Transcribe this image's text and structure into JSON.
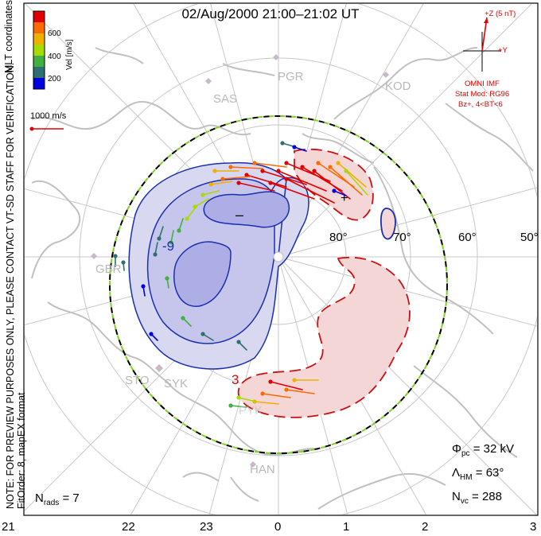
{
  "title": "02/Aug/2000 21:00–21:02 UT",
  "side_note": {
    "line1": "NOTE: FOR PREVIEW PURPOSES ONLY, PLEASE CONTACT VT-SD STAFF FOR VERIFICATION.",
    "line2": "FitOrder: 8,  mapEX format",
    "coords": "MLT coordinates"
  },
  "colorbar": {
    "unit_label": "Vel [m/s]",
    "ticks": [
      "600",
      "400",
      "200"
    ],
    "colors": [
      "#e00000",
      "#ff6a00",
      "#f0b000",
      "#a8dc00",
      "#40b040",
      "#2e7070",
      "#0000e0"
    ]
  },
  "velocity_scale": {
    "label": "1000 m/s"
  },
  "imf": {
    "z_label": "+Z (5 nT)",
    "y_label": "+Y",
    "source": "OMNI IMF",
    "model": "Stat Mod: RG96",
    "condition": "Bz+, 4<BT<6",
    "color": "#e00000"
  },
  "latitude_labels": [
    "80°",
    "70°",
    "60°",
    "50°"
  ],
  "stations": [
    "PGR",
    "KOD",
    "SAS",
    "GBR",
    "STO",
    "SYK",
    "PYK",
    "HAN"
  ],
  "contour_labels": {
    "negative": "-9",
    "positive": "3"
  },
  "stats": {
    "phi_pc": {
      "symbol": "Φ",
      "sub": "pc",
      "value": "= 32 kV"
    },
    "lambda_hm": {
      "symbol": "Λ",
      "sub": "HM",
      "value": "= 63°"
    },
    "n_vc": {
      "symbol": "N",
      "sub": "vc",
      "value": "= 288"
    },
    "n_rads": {
      "symbol": "N",
      "sub": "rads",
      "value": "= 7"
    }
  },
  "mlt_ticks": [
    "21",
    "22",
    "23",
    "0",
    "1",
    "2",
    "3"
  ],
  "map_colors": {
    "negative_fill": "#d8d8f0",
    "negative_fill_inner": "#aeaee6",
    "negative_line": "#1a2fae",
    "positive_fill": "#f4d6d6",
    "positive_line": "#cc1010",
    "coastline": "#c0c0c0",
    "grid": "#c8c8c8",
    "hmb_outer": "#000000",
    "hmb_inner": "#7ed321"
  }
}
